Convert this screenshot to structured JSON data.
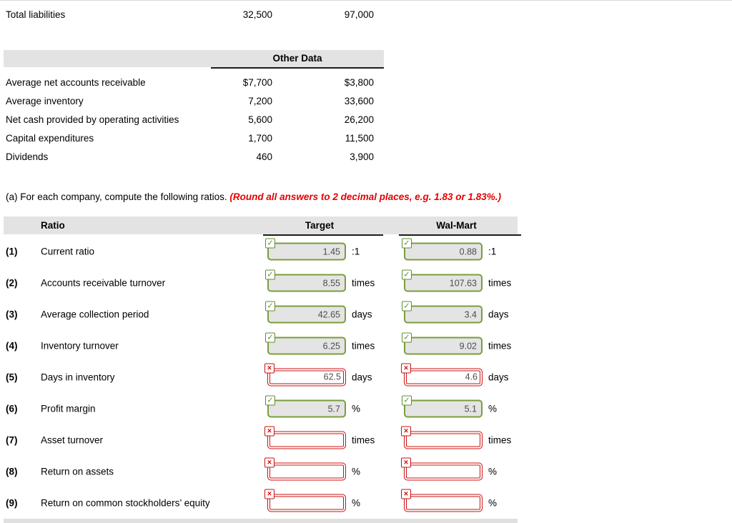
{
  "top_row": {
    "label": "Total liabilities",
    "target": "32,500",
    "walmart": "97,000"
  },
  "other_data": {
    "header": "Other Data",
    "rows": [
      {
        "label": "Average net accounts receivable",
        "target": "$7,700",
        "walmart": "$3,800"
      },
      {
        "label": "Average inventory",
        "target": "7,200",
        "walmart": "33,600"
      },
      {
        "label": "Net cash provided by operating activities",
        "target": "5,600",
        "walmart": "26,200"
      },
      {
        "label": "Capital expenditures",
        "target": "1,700",
        "walmart": "11,500"
      },
      {
        "label": "Dividends",
        "target": "460",
        "walmart": "3,900"
      }
    ]
  },
  "instruction": {
    "prefix": "(a) For each company, compute the following ratios. ",
    "emphasis": "(Round all answers to 2 decimal places, e.g. 1.83 or 1.83%.)"
  },
  "ratio_table": {
    "headers": {
      "ratio": "Ratio",
      "target": "Target",
      "walmart": "Wal-Mart"
    },
    "icons": {
      "correct": "✓",
      "incorrect": "×"
    },
    "rows": [
      {
        "num": "(1)",
        "label": "Current ratio",
        "unit": ":1",
        "target": {
          "value": "1.45",
          "status": "correct"
        },
        "walmart": {
          "value": "0.88",
          "status": "correct"
        }
      },
      {
        "num": "(2)",
        "label": "Accounts receivable turnover",
        "unit": "times",
        "target": {
          "value": "8.55",
          "status": "correct"
        },
        "walmart": {
          "value": "107.63",
          "status": "correct"
        }
      },
      {
        "num": "(3)",
        "label": "Average collection period",
        "unit": "days",
        "target": {
          "value": "42.65",
          "status": "correct"
        },
        "walmart": {
          "value": "3.4",
          "status": "correct"
        }
      },
      {
        "num": "(4)",
        "label": "Inventory turnover",
        "unit": "times",
        "target": {
          "value": "6.25",
          "status": "correct"
        },
        "walmart": {
          "value": "9.02",
          "status": "correct"
        }
      },
      {
        "num": "(5)",
        "label": "Days in inventory",
        "unit": "days",
        "target": {
          "value": "62.5",
          "status": "incorrect"
        },
        "walmart": {
          "value": "4.6",
          "status": "incorrect"
        }
      },
      {
        "num": "(6)",
        "label": "Profit margin",
        "unit": "%",
        "target": {
          "value": "5.7",
          "status": "correct"
        },
        "walmart": {
          "value": "5.1",
          "status": "correct"
        }
      },
      {
        "num": "(7)",
        "label": "Asset turnover",
        "unit": "times",
        "target": {
          "value": "",
          "status": "incorrect"
        },
        "walmart": {
          "value": "",
          "status": "incorrect"
        }
      },
      {
        "num": "(8)",
        "label": "Return on assets",
        "unit": "%",
        "target": {
          "value": "",
          "status": "incorrect"
        },
        "walmart": {
          "value": "",
          "status": "incorrect"
        }
      },
      {
        "num": "(9)",
        "label": "Return on common stockholders’ equity",
        "unit": "%",
        "target": {
          "value": "",
          "status": "incorrect"
        },
        "walmart": {
          "value": "",
          "status": "incorrect"
        }
      }
    ]
  },
  "colors": {
    "correct_green": "#5d8f2f",
    "incorrect_red": "#cc1111",
    "header_band_gray": "#e3e3e3",
    "input_fill_gray": "#e4e4e4",
    "emphasis_red": "#e60000"
  }
}
